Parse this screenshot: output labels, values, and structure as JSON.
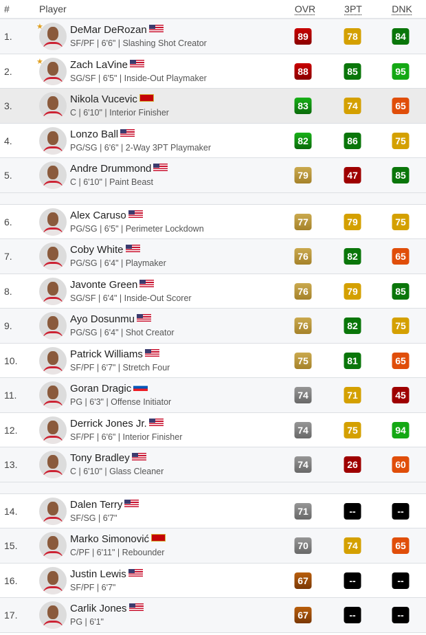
{
  "header": {
    "rank": "#",
    "player": "Player",
    "ovr": "OVR",
    "three": "3PT",
    "dnk": "DNK"
  },
  "palette": {
    "ruby": "linear-gradient(#c80000,#8a0000)",
    "emerald": "linear-gradient(#18b018,#0a6a0a)",
    "gold": "linear-gradient(#caa94e,#a5822a)",
    "silver": "linear-gradient(#969696,#686868)",
    "bronze": "linear-gradient(#b85e0c,#7a3805)",
    "yellow": "#d4a000",
    "dkgreen": "#0a760a",
    "green": "#14a814",
    "orange": "#e04e0a",
    "red": "#9e0000",
    "black": "#000000"
  },
  "groups": [
    [
      {
        "rank": "1.",
        "name": "DeMar DeRozan",
        "flag": "us",
        "info": "SF/PF | 6'6\" | Slashing Shot Creator",
        "star": true,
        "ovr": [
          "89",
          "ruby"
        ],
        "three": [
          "78",
          "yellow"
        ],
        "dnk": [
          "84",
          "dkgreen"
        ]
      },
      {
        "rank": "2.",
        "name": "Zach LaVine",
        "flag": "us",
        "info": "SG/SF | 6'5\" | Inside-Out Playmaker",
        "star": true,
        "ovr": [
          "88",
          "ruby"
        ],
        "three": [
          "85",
          "dkgreen"
        ],
        "dnk": [
          "95",
          "green"
        ]
      },
      {
        "rank": "3.",
        "name": "Nikola Vucevic",
        "flag": "me",
        "info": "C | 6'10\" | Interior Finisher",
        "hl": true,
        "ovr": [
          "83",
          "emerald"
        ],
        "three": [
          "74",
          "yellow"
        ],
        "dnk": [
          "65",
          "orange"
        ]
      },
      {
        "rank": "4.",
        "name": "Lonzo Ball",
        "flag": "us",
        "info": "PG/SG | 6'6\" | 2-Way 3PT Playmaker",
        "ovr": [
          "82",
          "emerald"
        ],
        "three": [
          "86",
          "dkgreen"
        ],
        "dnk": [
          "75",
          "yellow"
        ]
      },
      {
        "rank": "5.",
        "name": "Andre Drummond",
        "flag": "us",
        "info": "C | 6'10\" | Paint Beast",
        "ovr": [
          "79",
          "gold"
        ],
        "three": [
          "47",
          "red"
        ],
        "dnk": [
          "85",
          "dkgreen"
        ]
      }
    ],
    [
      {
        "rank": "6.",
        "name": "Alex Caruso",
        "flag": "us",
        "info": "PG/SG | 6'5\" | Perimeter Lockdown",
        "ovr": [
          "77",
          "gold"
        ],
        "three": [
          "79",
          "yellow"
        ],
        "dnk": [
          "75",
          "yellow"
        ]
      },
      {
        "rank": "7.",
        "name": "Coby White",
        "flag": "us",
        "info": "PG/SG | 6'4\" | Playmaker",
        "ovr": [
          "76",
          "gold"
        ],
        "three": [
          "82",
          "dkgreen"
        ],
        "dnk": [
          "65",
          "orange"
        ]
      },
      {
        "rank": "8.",
        "name": "Javonte Green",
        "flag": "us",
        "info": "SG/SF | 6'4\" | Inside-Out Scorer",
        "ovr": [
          "76",
          "gold"
        ],
        "three": [
          "79",
          "yellow"
        ],
        "dnk": [
          "85",
          "dkgreen"
        ]
      },
      {
        "rank": "9.",
        "name": "Ayo Dosunmu",
        "flag": "us",
        "info": "PG/SG | 6'4\" | Shot Creator",
        "ovr": [
          "76",
          "gold"
        ],
        "three": [
          "82",
          "dkgreen"
        ],
        "dnk": [
          "75",
          "yellow"
        ]
      },
      {
        "rank": "10.",
        "name": "Patrick Williams",
        "flag": "us",
        "info": "SF/PF | 6'7\" | Stretch Four",
        "ovr": [
          "75",
          "gold"
        ],
        "three": [
          "81",
          "dkgreen"
        ],
        "dnk": [
          "65",
          "orange"
        ]
      },
      {
        "rank": "11.",
        "name": "Goran Dragic",
        "flag": "si",
        "info": "PG | 6'3\" | Offense Initiator",
        "ovr": [
          "74",
          "silver"
        ],
        "three": [
          "71",
          "yellow"
        ],
        "dnk": [
          "45",
          "red"
        ]
      },
      {
        "rank": "12.",
        "name": "Derrick Jones Jr.",
        "flag": "us",
        "info": "SF/PF | 6'6\" | Interior Finisher",
        "ovr": [
          "74",
          "silver"
        ],
        "three": [
          "75",
          "yellow"
        ],
        "dnk": [
          "94",
          "green"
        ]
      },
      {
        "rank": "13.",
        "name": "Tony Bradley",
        "flag": "us",
        "info": "C | 6'10\" | Glass Cleaner",
        "ovr": [
          "74",
          "silver"
        ],
        "three": [
          "26",
          "red"
        ],
        "dnk": [
          "60",
          "orange"
        ]
      }
    ],
    [
      {
        "rank": "14.",
        "name": "Dalen Terry",
        "flag": "us",
        "info": "SF/SG | 6'7\"",
        "ovr": [
          "71",
          "silver"
        ],
        "three": [
          "--",
          "black"
        ],
        "dnk": [
          "--",
          "black"
        ]
      },
      {
        "rank": "15.",
        "name": "Marko Simonović",
        "flag": "me",
        "info": "C/PF | 6'11\" | Rebounder",
        "ovr": [
          "70",
          "silver"
        ],
        "three": [
          "74",
          "yellow"
        ],
        "dnk": [
          "65",
          "orange"
        ]
      },
      {
        "rank": "16.",
        "name": "Justin Lewis",
        "flag": "us",
        "info": "SF/PF | 6'7\"",
        "ovr": [
          "67",
          "bronze"
        ],
        "three": [
          "--",
          "black"
        ],
        "dnk": [
          "--",
          "black"
        ]
      },
      {
        "rank": "17.",
        "name": "Carlik Jones",
        "flag": "us",
        "info": "PG | 6'1\"",
        "ovr": [
          "67",
          "bronze"
        ],
        "three": [
          "--",
          "black"
        ],
        "dnk": [
          "--",
          "black"
        ]
      }
    ]
  ]
}
